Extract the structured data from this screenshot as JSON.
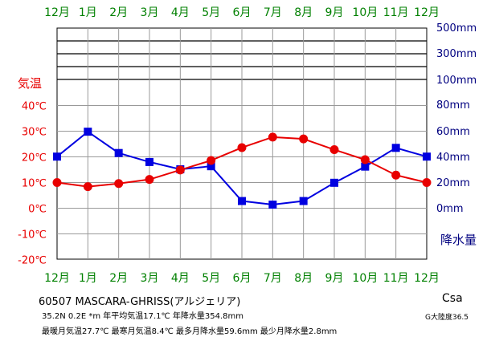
{
  "chart_data": {
    "type": "line",
    "categories_top": [
      "12月",
      "1月",
      "2月",
      "3月",
      "4月",
      "5月",
      "6月",
      "7月",
      "8月",
      "9月",
      "10月",
      "11月",
      "12月"
    ],
    "categories_bottom": [
      "12月",
      "1月",
      "2月",
      "3月",
      "4月",
      "5月",
      "6月",
      "7月",
      "8月",
      "9月",
      "10月",
      "11月",
      "12月"
    ],
    "temperature": {
      "label": "気温",
      "ticks": [
        "40℃",
        "30℃",
        "20℃",
        "10℃",
        "0℃",
        "-10℃",
        "-20℃"
      ],
      "tick_values": [
        40,
        30,
        20,
        10,
        0,
        -10,
        -20
      ],
      "range": [
        -20,
        60
      ],
      "values": [
        10.0,
        8.4,
        9.6,
        11.2,
        14.9,
        18.6,
        23.6,
        27.7,
        27.0,
        22.8,
        18.9,
        12.9,
        10.0
      ],
      "color": "#e80000"
    },
    "precipitation": {
      "label": "降水量",
      "ticks": [
        "500mm",
        "300mm",
        "200mm",
        "100mm",
        "80mm",
        "60mm",
        "40mm",
        "20mm",
        "0mm"
      ],
      "values": [
        40.2,
        59.6,
        43.0,
        36.0,
        30.3,
        32.7,
        5.6,
        2.8,
        5.6,
        19.8,
        32.4,
        47.0,
        40.2
      ],
      "color": "#0000e0"
    },
    "grid": true
  },
  "footer": {
    "station": "60507  MASCARA-GHRISS(アルジェリア)",
    "coords": "35.2N  0.2E  *m  年平均気温17.1℃  年降水量354.8mm",
    "extremes": "最暖月気温27.7℃  最寒月気温8.4℃  最多月降水量59.6mm  最少月降水量2.8mm",
    "climate_code": "Csa",
    "continentality": "G大陸度36.5"
  },
  "colors": {
    "month_labels": "#008000",
    "grid": "#000000",
    "precip_axis": "#000080",
    "temp_axis": "#e80000"
  }
}
